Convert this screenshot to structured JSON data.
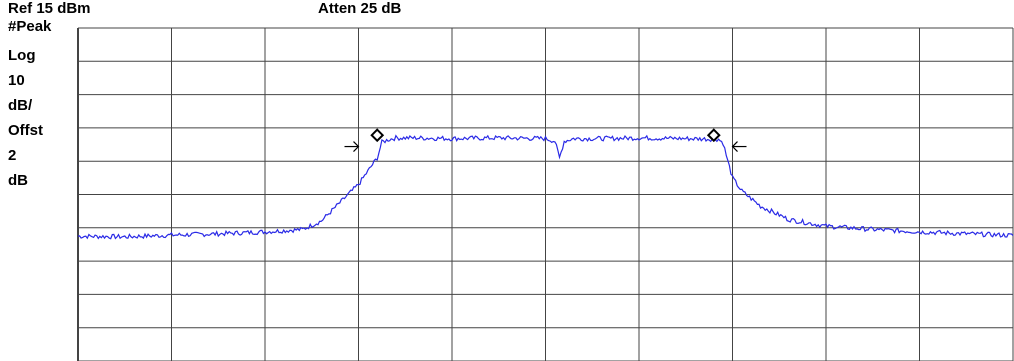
{
  "header": {
    "ref_level": "Ref 15 dBm",
    "attenuation": "Atten 25 dB"
  },
  "side_annotations": [
    "#Peak",
    "Log",
    "10",
    "dB/",
    "Offst",
    "2",
    "dB"
  ],
  "colors": {
    "trace": "#2a2ae6",
    "grid": "#444444",
    "marker": "#000000",
    "background": "#ffffff"
  },
  "chart_data": {
    "type": "line",
    "title": "",
    "xlabel": "",
    "ylabel": "",
    "x_divisions": 10,
    "y_divisions": 10,
    "grid": true,
    "y_scale_db_per_div": 10,
    "ylim_db": [
      -85,
      15
    ],
    "series": [
      {
        "x": [
          0,
          0.5,
          1.0,
          1.5,
          2.0,
          2.4,
          2.6,
          2.8,
          3.0,
          3.2,
          3.25,
          3.32,
          3.4,
          3.6,
          4.0,
          4.5,
          5.0,
          5.1,
          5.15,
          5.2,
          5.3,
          5.6,
          6.0,
          6.5,
          6.85,
          6.9,
          6.94,
          7.0,
          7.1,
          7.3,
          7.6,
          8.0,
          8.5,
          9.0,
          9.5,
          10.0
        ],
        "y": [
          -47.5,
          -47.7,
          -47.2,
          -46.8,
          -46.2,
          -45.5,
          -43,
          -37.5,
          -32,
          -24,
          -19.3,
          -18.5,
          -18.0,
          -18.0,
          -18.2,
          -18.0,
          -18.2,
          -19,
          -24,
          -19,
          -18.2,
          -18.2,
          -18.0,
          -18.2,
          -18.4,
          -19.5,
          -24,
          -30,
          -34,
          -38.5,
          -42.5,
          -44.5,
          -45.5,
          -46.2,
          -46.8,
          -47.3
        ]
      }
    ],
    "markers": [
      {
        "x": 3.2,
        "y": -17.2,
        "shape": "diamond"
      },
      {
        "x": 6.8,
        "y": -17.2,
        "shape": "diamond"
      }
    ],
    "bracket_arrows": [
      {
        "x": 3.0,
        "y": -20.6,
        "direction": "right"
      },
      {
        "x": 7.0,
        "y": -20.6,
        "direction": "left"
      }
    ]
  }
}
